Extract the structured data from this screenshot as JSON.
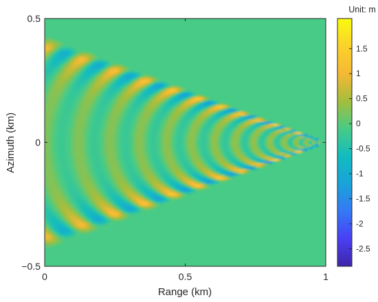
{
  "chart_data": {
    "type": "heatmap",
    "title": "",
    "xlabel": "Range (km)",
    "ylabel": "Azimuth (km)",
    "xlim": [
      0,
      1
    ],
    "ylim": [
      -0.5,
      0.5
    ],
    "x_ticks": [
      0,
      0.5,
      1
    ],
    "x_tick_labels": [
      "0",
      "0.5",
      "1"
    ],
    "y_ticks": [
      -0.5,
      0,
      0.5
    ],
    "y_tick_labels": [
      "−0.5",
      "0",
      "0.5"
    ],
    "colorbar": {
      "label": "Unit: m",
      "range": [
        -2.85,
        2.1
      ],
      "ticks": [
        1.5,
        1,
        0.5,
        0,
        -0.5,
        -1,
        -1.5,
        -2,
        -2.5
      ],
      "tick_labels": [
        "1.5",
        "1",
        "0.5",
        "0",
        "-0.5",
        "-1",
        "-1.5",
        "-2",
        "-2.5"
      ],
      "colormap": "parula",
      "colormap_stops": [
        "#3e26a8",
        "#4a3ff4",
        "#3479f6",
        "#19a3d9",
        "#12bcbf",
        "#48cb86",
        "#a4be3c",
        "#f6b835",
        "#fad22b",
        "#f9fb0e"
      ]
    },
    "pattern": {
      "description_of_field": "chevron interference fringes converging at apex",
      "apex": [
        0.99,
        0.0
      ],
      "upper_edge_at_range_0": 0.38,
      "lower_edge_at_range_0": -0.38,
      "fringe_count": 16,
      "peak_value": 1.9,
      "trough_value": -2.8,
      "background_value": 0
    }
  }
}
